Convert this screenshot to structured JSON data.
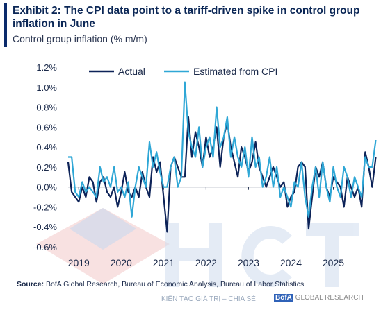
{
  "header": {
    "title": "Exhibit 2: The CPI data point to a tariff-driven spike in control group inflation in June",
    "subtitle": "Control group inflation (% m/m)"
  },
  "footer": {
    "source_label": "Source:",
    "source_text": "BofA Global Research, Bureau of Economic Analysis, Bureau of Labor Statistics",
    "brand_badge": "BofA",
    "brand_text": "GLOBAL RESEARCH",
    "watermark_tagline": "KIẾN TẠO GIÁ TRỊ – CHIA SẺ"
  },
  "colors": {
    "actual": "#0d2358",
    "estimated": "#2fa7d6",
    "axis": "#1b2a4a",
    "watermark_red": "#e8a0a0",
    "watermark_blue": "#c9d9ee"
  },
  "chart_data": {
    "type": "line",
    "title": "Exhibit 2: The CPI data point to a tariff-driven spike in control group inflation in June",
    "ylabel": "Control group inflation (% m/m)",
    "xlabel": "",
    "ylim": [
      -0.6,
      1.2
    ],
    "xlim": [
      "2018-10",
      "2025-07"
    ],
    "yticks": [
      -0.6,
      -0.4,
      -0.2,
      0.0,
      0.2,
      0.4,
      0.6,
      0.8,
      1.0,
      1.2
    ],
    "ytick_labels": [
      "-0.6%",
      "-0.4%",
      "-0.2%",
      "0.0%",
      "0.2%",
      "0.4%",
      "0.6%",
      "0.8%",
      "1.0%",
      "1.2%"
    ],
    "xticks": [
      "2019",
      "2020",
      "2021",
      "2022",
      "2023",
      "2024",
      "2025"
    ],
    "grid": false,
    "legend": "top-center",
    "start": "2018-10",
    "frequency": "monthly",
    "series": [
      {
        "name": "Actual",
        "values": [
          0.25,
          -0.05,
          -0.1,
          -0.15,
          0.0,
          -0.1,
          0.1,
          0.05,
          -0.15,
          0.05,
          0.1,
          -0.05,
          -0.1,
          0.0,
          -0.2,
          -0.05,
          0.15,
          -0.05,
          -0.1,
          0.0,
          -0.1,
          0.15,
          0.0,
          -0.1,
          0.3,
          0.15,
          0.25,
          -0.1,
          -0.45,
          0.2,
          0.3,
          0.2,
          0.1,
          0.1,
          0.7,
          0.3,
          0.55,
          0.4,
          0.2,
          0.5,
          0.3,
          0.4,
          0.6,
          0.2,
          0.5,
          0.65,
          0.4,
          0.25,
          0.1,
          0.4,
          0.3,
          0.15,
          0.25,
          0.45,
          0.2,
          0.1,
          0.0,
          0.1,
          0.2,
          0.1,
          0.0,
          0.05,
          -0.2,
          -0.1,
          -0.05,
          0.2,
          0.25,
          0.2,
          -0.42,
          -0.1,
          0.2,
          0.1,
          0.25,
          0.0,
          -0.1,
          0.1,
          0.05,
          0.0,
          -0.2,
          0.1,
          0.0,
          -0.1,
          0.0,
          -0.2,
          0.35,
          0.2,
          0.0,
          0.3
        ]
      },
      {
        "name": "Estimated from CPI",
        "values": [
          0.3,
          0.3,
          -0.05,
          -0.1,
          0.05,
          -0.05,
          0.0,
          -0.05,
          -0.1,
          0.2,
          0.05,
          0.1,
          0.0,
          0.2,
          -0.05,
          0.0,
          -0.1,
          0.05,
          -0.3,
          0.0,
          0.2,
          0.1,
          0.0,
          0.45,
          0.2,
          0.35,
          0.15,
          0.0,
          0.0,
          0.2,
          0.3,
          0.0,
          0.1,
          1.05,
          0.55,
          0.4,
          0.3,
          0.6,
          0.2,
          0.4,
          0.5,
          0.3,
          0.8,
          0.4,
          0.5,
          0.7,
          0.3,
          0.5,
          0.3,
          0.2,
          0.4,
          0.1,
          0.5,
          0.2,
          0.3,
          0.0,
          0.1,
          0.3,
          0.0,
          0.2,
          -0.1,
          0.0,
          -0.1,
          -0.2,
          0.05,
          0.0,
          0.25,
          -0.1,
          -0.3,
          0.0,
          0.2,
          -0.1,
          0.25,
          0.0,
          -0.15,
          0.2,
          0.0,
          -0.1,
          0.2,
          0.1,
          -0.1,
          0.1,
          0.0,
          -0.1,
          0.3,
          0.2,
          0.2,
          0.47
        ]
      }
    ]
  }
}
